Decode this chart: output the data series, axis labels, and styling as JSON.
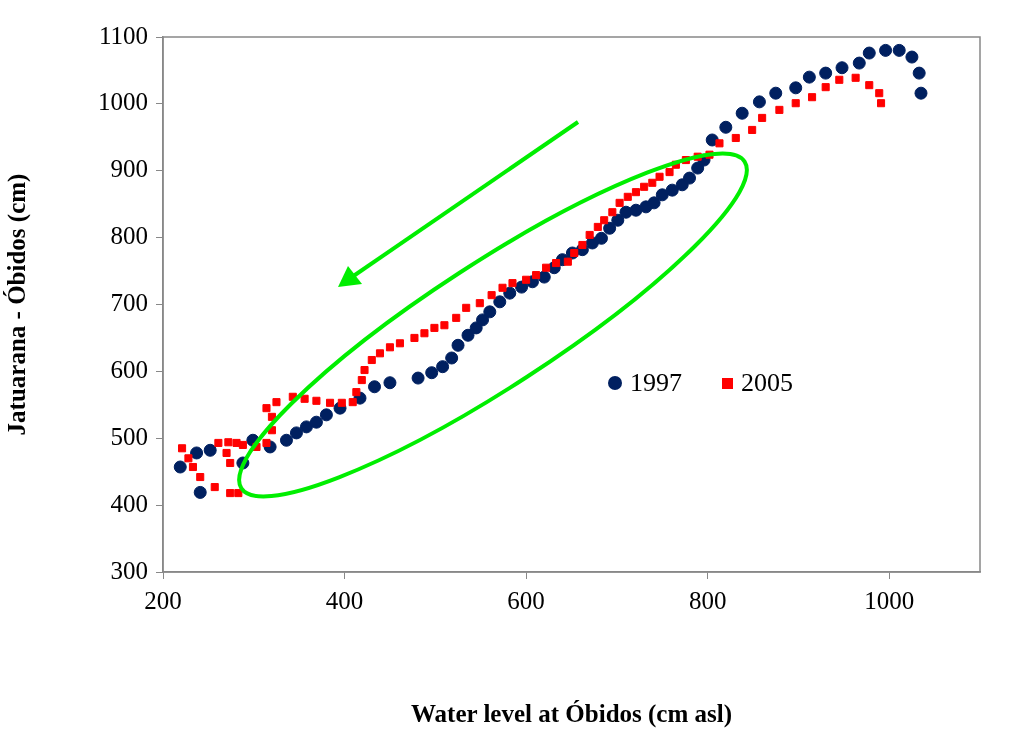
{
  "chart_data": {
    "type": "scatter",
    "xlabel": "Water level at Óbidos (cm asl)",
    "ylabel": "Jatuarana - Óbidos (cm)",
    "xlim": [
      200,
      1100
    ],
    "xticks": [
      200,
      400,
      600,
      800,
      1000
    ],
    "ylim": [
      300,
      1100
    ],
    "yticks": [
      300,
      400,
      500,
      600,
      700,
      800,
      900,
      1000,
      1100
    ],
    "grid": false,
    "legend": "right",
    "series": [
      {
        "name": "1997",
        "color": "#002060",
        "marker": "circle",
        "x": [
          219,
          241,
          237,
          252,
          288,
          299,
          318,
          336,
          347,
          358,
          369,
          380,
          395,
          417,
          433,
          450,
          481,
          496,
          508,
          518,
          525,
          536,
          545,
          552,
          560,
          571,
          582,
          595,
          607,
          620,
          631,
          640,
          651,
          662,
          673,
          683,
          692,
          701,
          710,
          721,
          732,
          741,
          750,
          761,
          772,
          780,
          789,
          796,
          805,
          820,
          838,
          857,
          875,
          897,
          912,
          930,
          948,
          967,
          978,
          996,
          1011,
          1025,
          1033,
          1035
        ],
        "values": [
          457,
          419,
          478,
          482,
          463,
          497,
          487,
          497,
          508,
          517,
          524,
          535,
          545,
          560,
          577,
          583,
          590,
          598,
          607,
          620,
          639,
          654,
          665,
          677,
          689,
          704,
          717,
          726,
          734,
          741,
          755,
          767,
          777,
          782,
          792,
          799,
          814,
          826,
          838,
          841,
          846,
          852,
          864,
          871,
          879,
          889,
          904,
          916,
          946,
          965,
          986,
          1003,
          1016,
          1024,
          1040,
          1046,
          1054,
          1061,
          1076,
          1080,
          1080,
          1070,
          1046,
          1016
        ]
      },
      {
        "name": "2005",
        "color": "#ff0000",
        "marker": "square",
        "x": [
          221,
          228,
          233,
          241,
          257,
          274,
          283,
          274,
          270,
          261,
          272,
          281,
          288,
          303,
          314,
          320,
          320,
          314,
          325,
          343,
          356,
          369,
          384,
          397,
          409,
          413,
          419,
          422,
          430,
          439,
          450,
          461,
          477,
          488,
          499,
          510,
          523,
          534,
          549,
          562,
          574,
          585,
          600,
          611,
          622,
          633,
          646,
          653,
          662,
          670,
          679,
          686,
          695,
          703,
          712,
          721,
          730,
          739,
          747,
          758,
          765,
          776,
          789,
          802,
          813,
          831,
          849,
          860,
          879,
          897,
          915,
          930,
          945,
          963,
          978,
          989,
          991
        ],
        "values": [
          485,
          470,
          457,
          442,
          427,
          418,
          418,
          463,
          478,
          493,
          494,
          493,
          490,
          487,
          493,
          512,
          532,
          545,
          554,
          562,
          559,
          556,
          553,
          553,
          554,
          569,
          587,
          602,
          617,
          627,
          636,
          642,
          650,
          657,
          665,
          669,
          680,
          695,
          702,
          714,
          725,
          732,
          737,
          744,
          755,
          762,
          764,
          777,
          789,
          804,
          816,
          826,
          838,
          852,
          861,
          868,
          876,
          882,
          891,
          898,
          909,
          916,
          921,
          924,
          941,
          949,
          961,
          979,
          991,
          1001,
          1010,
          1025,
          1036,
          1039,
          1028,
          1016,
          1001
        ]
      }
    ]
  }
}
